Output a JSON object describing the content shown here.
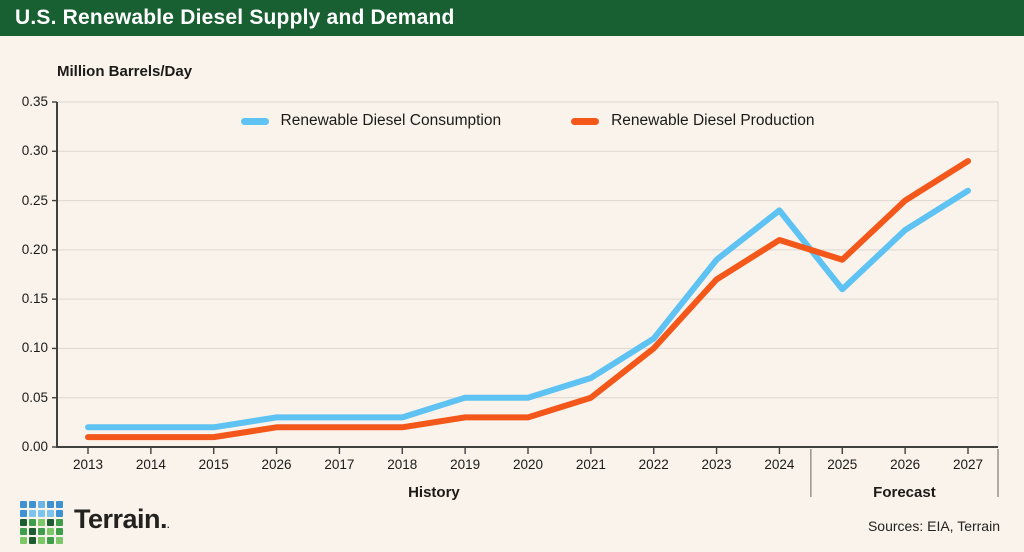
{
  "header": {
    "title": "U.S. Renewable Diesel Supply and Demand",
    "bg_color": "#185f32"
  },
  "chart_data": {
    "type": "line",
    "title": "U.S. Renewable Diesel Supply and Demand",
    "ylabel": "Million Barrels/Day",
    "xlabel": "",
    "x_tick_labels": [
      "2013",
      "2014",
      "2015",
      "2026",
      "2017",
      "2018",
      "2019",
      "2020",
      "2021",
      "2022",
      "2023",
      "2024",
      "2025",
      "2026",
      "2027"
    ],
    "y_tick_labels": [
      "0.00",
      "0.05",
      "0.10",
      "0.15",
      "0.20",
      "0.25",
      "0.30",
      "0.35"
    ],
    "ylim": [
      0,
      0.35
    ],
    "y_step": 0.05,
    "grid": "horizontal",
    "legend_position": "top",
    "series": [
      {
        "name": "Renewable Diesel Consumption",
        "color": "#5ec2f2",
        "values": [
          0.02,
          0.02,
          0.02,
          0.03,
          0.03,
          0.03,
          0.05,
          0.05,
          0.07,
          0.11,
          0.19,
          0.24,
          0.16,
          0.22,
          0.26
        ]
      },
      {
        "name": "Renewable Diesel Production",
        "color": "#f4571a",
        "values": [
          0.01,
          0.01,
          0.01,
          0.02,
          0.02,
          0.02,
          0.03,
          0.03,
          0.05,
          0.1,
          0.17,
          0.21,
          0.19,
          0.25,
          0.29
        ]
      }
    ],
    "sections": [
      {
        "label": "History",
        "start_index": 0,
        "end_index": 11
      },
      {
        "label": "Forecast",
        "start_index": 12,
        "end_index": 14
      }
    ]
  },
  "footer": {
    "logo_text": "Terrain",
    "logo_suffix": ".",
    "sources": "Sources: EIA, Terrain",
    "logo_grid": [
      [
        "#3e92d2",
        "#3e92d2",
        "#6db5e7",
        "#3e92d2",
        "#3e92d2"
      ],
      [
        "#3e92d2",
        "#7cc4ee",
        "#7cc4ee",
        "#7cc4ee",
        "#3e92d2"
      ],
      [
        "#1d5c30",
        "#3f9e4c",
        "#7cc868",
        "#1d5c30",
        "#3f9e4c"
      ],
      [
        "#3f9e4c",
        "#1d5c30",
        "#3f9e4c",
        "#7cc868",
        "#3f9e4c"
      ],
      [
        "#7cc868",
        "#1d5c30",
        "#7cc868",
        "#3f9e4c",
        "#7cc868"
      ]
    ]
  }
}
